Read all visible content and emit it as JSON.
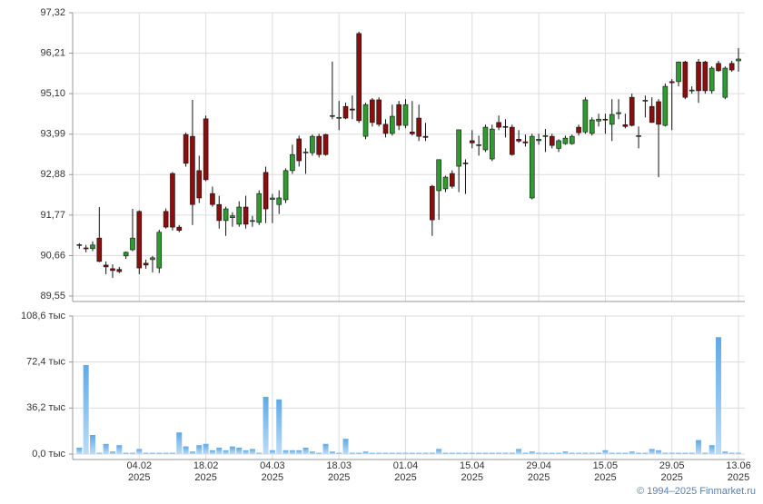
{
  "chart_data": [
    {
      "type": "candlestick",
      "up_color": "#2e9b2e",
      "down_color": "#8b0e0e",
      "grid": true,
      "ylim": [
        89.55,
        97.32
      ],
      "yticks": [
        {
          "value": 89.55,
          "label": "89,55"
        },
        {
          "value": 90.66,
          "label": "90,66"
        },
        {
          "value": 91.77,
          "label": "91,77"
        },
        {
          "value": 92.88,
          "label": "92,88"
        },
        {
          "value": 93.99,
          "label": "93,99"
        },
        {
          "value": 95.1,
          "label": "95,10"
        },
        {
          "value": 96.21,
          "label": "96,21"
        },
        {
          "value": 97.32,
          "label": "97,32"
        }
      ],
      "open": [
        90.94,
        90.87,
        90.85,
        91.14,
        90.4,
        90.3,
        90.28,
        90.65,
        90.82,
        91.87,
        90.45,
        90.55,
        90.32,
        91.87,
        92.91,
        91.44,
        93.98,
        93.93,
        92.99,
        94.41,
        92.36,
        92.06,
        91.62,
        91.7,
        91.52,
        91.99,
        91.6,
        91.57,
        92.94,
        92.2,
        92.06,
        92.19,
        92.99,
        93.86,
        93.48,
        93.48,
        93.93,
        93.98,
        94.48,
        94.43,
        94.75,
        94.68,
        96.75,
        93.93,
        94.93,
        94.93,
        94.26,
        94.01,
        94.8,
        94.23,
        94.05,
        94.43,
        93.93,
        92.56,
        92.44,
        92.49,
        92.91,
        93.11,
        93.2,
        93.81,
        93.68,
        93.56,
        93.31,
        94.31,
        94.2,
        94.18,
        93.85,
        93.78,
        92.24,
        93.81,
        93.95,
        93.93,
        93.6,
        93.73,
        93.73,
        94.18,
        94.05,
        94.01,
        94.35,
        94.4,
        94.26,
        94.55,
        94.25,
        95.0,
        93.93,
        94.9,
        94.75,
        94.88,
        94.23,
        95.43,
        95.43,
        95.97,
        95.18,
        95.97,
        95.97,
        95.18,
        95.93,
        95.0,
        95.93,
        96.0
      ],
      "high": [
        91.0,
        90.95,
        91.05,
        91.99,
        90.5,
        90.42,
        90.35,
        90.77,
        91.94,
        91.9,
        90.55,
        90.65,
        91.37,
        91.95,
        92.95,
        91.5,
        94.03,
        94.93,
        93.4,
        94.5,
        92.55,
        92.3,
        92.0,
        91.85,
        92.15,
        92.3,
        91.75,
        92.45,
        93.1,
        92.35,
        92.45,
        93.05,
        93.7,
        93.95,
        93.6,
        93.98,
        94.0,
        94.0,
        95.98,
        94.9,
        94.85,
        95.05,
        96.8,
        94.85,
        94.98,
        95.0,
        94.4,
        94.8,
        94.9,
        94.95,
        94.9,
        94.8,
        94.3,
        92.6,
        93.3,
        92.85,
        93.0,
        94.1,
        93.3,
        94.1,
        93.95,
        94.25,
        94.25,
        94.5,
        94.4,
        94.25,
        94.1,
        93.98,
        94.0,
        94.0,
        94.13,
        94.0,
        93.85,
        93.95,
        93.98,
        94.25,
        95.0,
        94.45,
        94.55,
        94.55,
        94.95,
        94.95,
        94.55,
        95.1,
        94.2,
        95.05,
        95.0,
        94.95,
        95.38,
        95.5,
        95.98,
        96.0,
        95.3,
        96.05,
        96.0,
        95.85,
        96.0,
        95.85,
        96.0,
        96.35
      ],
      "low": [
        90.85,
        90.75,
        90.78,
        90.48,
        90.15,
        90.05,
        90.18,
        90.57,
        90.78,
        90.15,
        90.3,
        90.2,
        90.18,
        91.4,
        91.35,
        91.3,
        93.1,
        91.5,
        92.1,
        92.7,
        92.0,
        91.4,
        91.2,
        91.45,
        91.45,
        91.4,
        91.45,
        91.5,
        91.55,
        91.55,
        91.8,
        92.1,
        92.9,
        93.1,
        92.9,
        93.4,
        93.35,
        93.4,
        94.4,
        94.1,
        94.4,
        94.4,
        94.3,
        93.85,
        94.2,
        94.2,
        93.9,
        93.95,
        94.1,
        94.15,
        93.95,
        93.8,
        93.8,
        91.2,
        91.64,
        92.4,
        92.5,
        92.4,
        92.35,
        93.6,
        93.4,
        93.5,
        93.25,
        94.1,
        93.9,
        93.4,
        93.75,
        93.65,
        92.2,
        93.7,
        93.5,
        93.6,
        93.5,
        93.7,
        93.7,
        93.95,
        94.0,
        93.95,
        94.2,
        94.0,
        93.8,
        94.4,
        94.15,
        94.2,
        93.6,
        94.45,
        94.3,
        92.81,
        94.2,
        94.1,
        95.3,
        94.95,
        95.1,
        94.85,
        95.1,
        95.1,
        95.7,
        94.95,
        95.7,
        95.7
      ],
      "close": [
        90.96,
        90.85,
        90.95,
        90.5,
        90.35,
        90.25,
        90.22,
        90.75,
        91.14,
        90.32,
        90.4,
        90.6,
        91.3,
        91.44,
        91.44,
        91.35,
        93.19,
        92.06,
        92.24,
        92.74,
        92.06,
        91.62,
        91.94,
        91.75,
        91.99,
        91.52,
        91.62,
        92.36,
        91.94,
        92.24,
        92.24,
        92.99,
        93.43,
        93.26,
        93.5,
        93.93,
        93.43,
        93.43,
        94.5,
        94.45,
        94.43,
        94.65,
        94.36,
        94.8,
        94.31,
        94.26,
        94.01,
        94.48,
        94.23,
        94.8,
        94.0,
        93.93,
        93.9,
        91.64,
        93.29,
        92.81,
        92.56,
        94.11,
        93.18,
        93.75,
        93.7,
        94.18,
        94.13,
        94.18,
        94.18,
        93.43,
        93.8,
        93.75,
        93.93,
        93.85,
        93.95,
        93.68,
        93.81,
        93.88,
        93.93,
        94.03,
        94.93,
        94.38,
        94.4,
        94.38,
        94.53,
        94.58,
        94.2,
        94.23,
        93.95,
        94.92,
        94.31,
        94.26,
        95.3,
        95.4,
        95.97,
        95.0,
        95.2,
        95.18,
        95.18,
        95.8,
        95.73,
        95.8,
        95.75,
        96.05
      ]
    },
    {
      "type": "bar",
      "color": "#8cc2ee",
      "grid": true,
      "ylim": [
        0,
        108.6
      ],
      "yticks": [
        {
          "value": 0,
          "label": "0,0 тыс"
        },
        {
          "value": 36.2,
          "label": "36,2 тыс"
        },
        {
          "value": 72.4,
          "label": "72,4 тыс"
        },
        {
          "value": 108.6,
          "label": "108,6 тыс"
        }
      ],
      "xticks": [
        {
          "value": 9,
          "label": "04.02",
          "year": "2025"
        },
        {
          "value": 19,
          "label": "18.02",
          "year": "2025"
        },
        {
          "value": 29,
          "label": "04.03",
          "year": "2025"
        },
        {
          "value": 39,
          "label": "18.03",
          "year": "2025"
        },
        {
          "value": 49,
          "label": "01.04",
          "year": "2025"
        },
        {
          "value": 59,
          "label": "15.04",
          "year": "2025"
        },
        {
          "value": 69,
          "label": "29.04",
          "year": "2025"
        },
        {
          "value": 79,
          "label": "15.05",
          "year": "2025"
        },
        {
          "value": 89,
          "label": "29.05",
          "year": "2025"
        },
        {
          "value": 99,
          "label": "13.06",
          "year": "2025"
        }
      ],
      "values": [
        5,
        70,
        15,
        1,
        8,
        2,
        7,
        1,
        1,
        4,
        1,
        1,
        1,
        1,
        1,
        17,
        6,
        2,
        7,
        8,
        3,
        5,
        3,
        6,
        5,
        3,
        4,
        1,
        45,
        3,
        43,
        3,
        3,
        3,
        5,
        2,
        1,
        8,
        2,
        1,
        12,
        1,
        1,
        2,
        1,
        1,
        1,
        1,
        1,
        1,
        1,
        1,
        1,
        1,
        4,
        1,
        1,
        1,
        1,
        1,
        1,
        1,
        1,
        1,
        1,
        1,
        4,
        1,
        2,
        1,
        1,
        1,
        1,
        2,
        1,
        1,
        1,
        1,
        1,
        3,
        1,
        1,
        1,
        2,
        1,
        1,
        4,
        3,
        1,
        1,
        1,
        1,
        1,
        11,
        1,
        7,
        92,
        2,
        1,
        1
      ]
    }
  ],
  "footer": "© 1994–2025 Finmarket.ru"
}
